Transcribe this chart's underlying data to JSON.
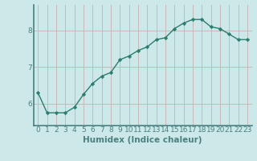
{
  "x": [
    0,
    1,
    2,
    3,
    4,
    5,
    6,
    7,
    8,
    9,
    10,
    11,
    12,
    13,
    14,
    15,
    16,
    17,
    18,
    19,
    20,
    21,
    22,
    23
  ],
  "y": [
    6.3,
    5.75,
    5.75,
    5.75,
    5.9,
    6.25,
    6.55,
    6.75,
    6.85,
    7.2,
    7.3,
    7.45,
    7.55,
    7.75,
    7.8,
    8.05,
    8.2,
    8.3,
    8.3,
    8.1,
    8.05,
    7.9,
    7.75,
    7.75
  ],
  "line_color": "#2d7d6e",
  "marker": "D",
  "marker_size": 2.2,
  "bg_color": "#cce8e8",
  "grid_color_v": "#c8b8b8",
  "grid_color_h": "#c8b8b8",
  "xlabel": "Humidex (Indice chaleur)",
  "ylabel": "",
  "xlim": [
    -0.5,
    23.5
  ],
  "ylim": [
    5.4,
    8.7
  ],
  "yticks": [
    6,
    7,
    8
  ],
  "xticks": [
    0,
    1,
    2,
    3,
    4,
    5,
    6,
    7,
    8,
    9,
    10,
    11,
    12,
    13,
    14,
    15,
    16,
    17,
    18,
    19,
    20,
    21,
    22,
    23
  ],
  "tick_fontsize": 6.5,
  "xlabel_fontsize": 7.5,
  "line_width": 1.0,
  "spine_color": "#4a8080"
}
